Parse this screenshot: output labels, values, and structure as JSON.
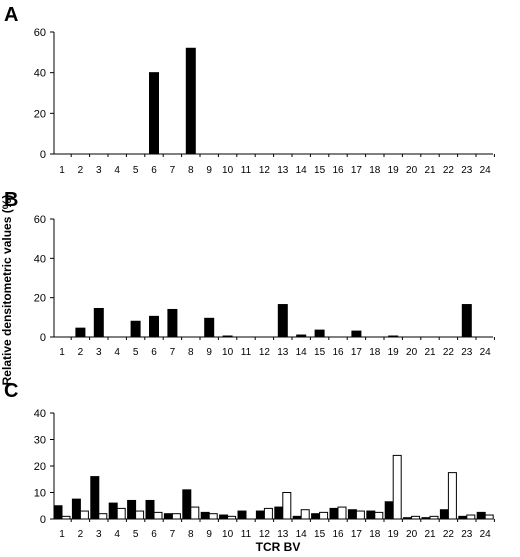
{
  "figure": {
    "ylabel": "Relative densitometric values (%)",
    "xlabel": "TCR BV"
  },
  "chart_data": [
    {
      "type": "bar",
      "panel": "A",
      "categories": [
        "1",
        "2",
        "3",
        "4",
        "5",
        "6",
        "7",
        "8",
        "9",
        "10",
        "11",
        "12",
        "13",
        "14",
        "15",
        "16",
        "17",
        "18",
        "19",
        "20",
        "21",
        "22",
        "23",
        "24"
      ],
      "ylim": [
        0,
        60
      ],
      "yticks": [
        0,
        20,
        40,
        60
      ],
      "series": [
        {
          "fill": "#000000",
          "values": [
            0,
            0,
            0,
            0,
            0,
            40,
            0,
            52,
            0,
            0,
            0,
            0,
            0,
            0,
            0,
            0,
            0,
            0,
            0,
            0,
            0,
            0,
            0,
            0
          ]
        }
      ]
    },
    {
      "type": "bar",
      "panel": "B",
      "categories": [
        "1",
        "2",
        "3",
        "4",
        "5",
        "6",
        "7",
        "8",
        "9",
        "10",
        "11",
        "12",
        "13",
        "14",
        "15",
        "16",
        "17",
        "18",
        "19",
        "20",
        "21",
        "22",
        "23",
        "24"
      ],
      "ylim": [
        0,
        60
      ],
      "yticks": [
        0,
        20,
        40,
        60
      ],
      "series": [
        {
          "fill": "#000000",
          "values": [
            0,
            4.5,
            14.5,
            0,
            8,
            10.5,
            14,
            0,
            9.5,
            0.5,
            0,
            0,
            16.5,
            1,
            3.5,
            0,
            3,
            0,
            0.5,
            0,
            0,
            0,
            16.5,
            0
          ]
        }
      ]
    },
    {
      "type": "bar",
      "panel": "C",
      "categories": [
        "1",
        "2",
        "3",
        "4",
        "5",
        "6",
        "7",
        "8",
        "9",
        "10",
        "11",
        "12",
        "13",
        "14",
        "15",
        "16",
        "17",
        "18",
        "19",
        "20",
        "21",
        "22",
        "23",
        "24"
      ],
      "ylim": [
        0,
        40
      ],
      "yticks": [
        0,
        10,
        20,
        30,
        40
      ],
      "series": [
        {
          "fill": "#000000",
          "values": [
            5,
            7.5,
            16,
            6,
            7,
            7,
            2,
            11,
            2.5,
            1.5,
            3,
            3,
            4.5,
            1,
            2,
            4,
            3.5,
            3,
            6.5,
            0.5,
            0.5,
            3.5,
            1,
            2.5
          ]
        },
        {
          "fill": "#ffffff",
          "values": [
            1,
            3,
            2,
            4,
            3,
            2.5,
            2,
            4.5,
            2,
            1,
            0,
            4,
            10,
            3.5,
            2.5,
            4.5,
            3,
            2.5,
            24,
            1,
            1,
            17.5,
            1.5,
            1.5
          ]
        }
      ]
    }
  ]
}
